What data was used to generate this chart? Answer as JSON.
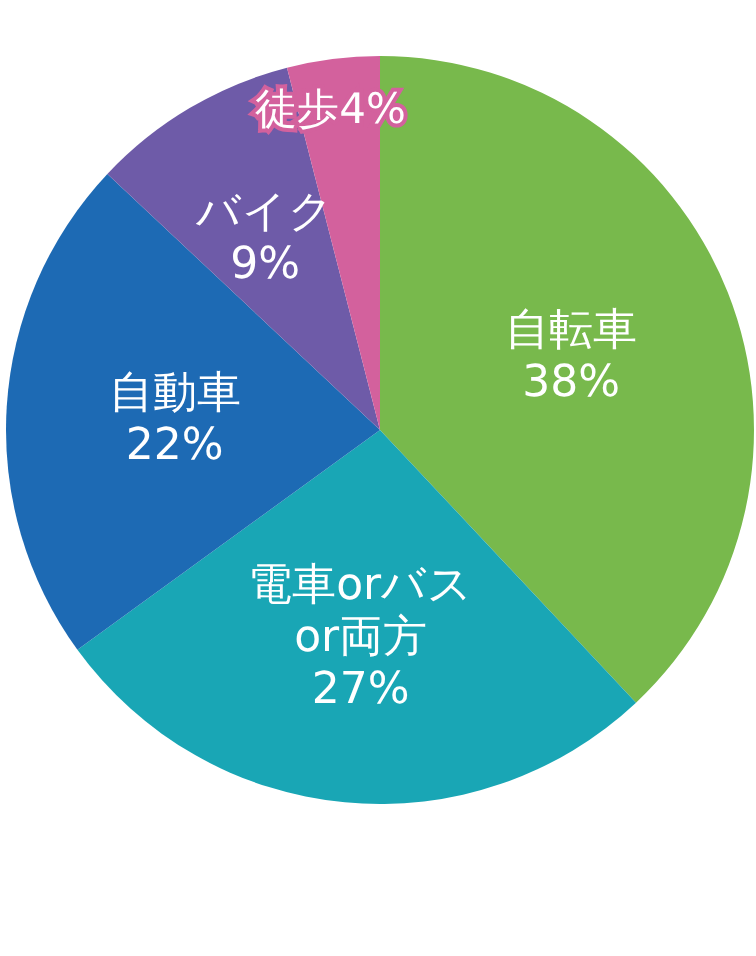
{
  "chart_data": {
    "type": "pie",
    "categories": [
      "自転車",
      "電車orバスor両方",
      "自動車",
      "バイク",
      "徒歩"
    ],
    "values": [
      38,
      27,
      22,
      9,
      4
    ],
    "value_labels": [
      "38%",
      "27%",
      "22%",
      "9%",
      "4%"
    ],
    "colors": [
      "#78b94c",
      "#19a6b5",
      "#1d6ab4",
      "#6e5ba8",
      "#d3619d"
    ]
  }
}
